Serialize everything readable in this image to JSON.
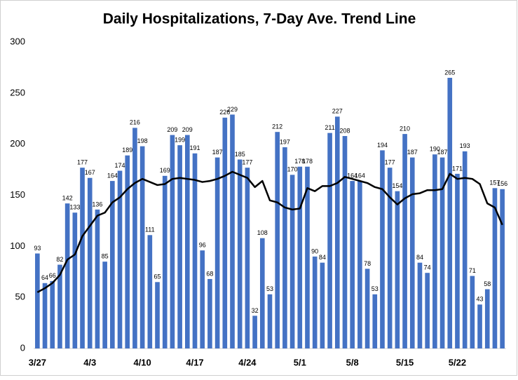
{
  "chart_data": {
    "type": "bar",
    "title": "Daily Hospitalizations, 7-Day Ave. Trend Line",
    "categories": [
      "3/27",
      null,
      null,
      null,
      null,
      null,
      null,
      "4/3",
      null,
      null,
      null,
      null,
      null,
      null,
      "4/10",
      null,
      null,
      null,
      null,
      null,
      null,
      "4/17",
      null,
      null,
      null,
      null,
      null,
      null,
      "4/24",
      null,
      null,
      null,
      null,
      null,
      null,
      "5/1",
      null,
      null,
      null,
      null,
      null,
      null,
      "5/8",
      null,
      null,
      null,
      null,
      null,
      null,
      "5/15",
      null,
      null,
      null,
      null,
      null,
      null,
      "5/22",
      null,
      null,
      null,
      null,
      null,
      null
    ],
    "series": [
      {
        "type": "bar",
        "color": "#4472c4",
        "values": [
          93,
          64,
          66,
          82,
          142,
          133,
          177,
          167,
          136,
          85,
          164,
          174,
          189,
          216,
          198,
          111,
          65,
          169,
          209,
          199,
          209,
          191,
          96,
          68,
          187,
          226,
          229,
          185,
          177,
          32,
          108,
          53,
          212,
          197,
          170,
          178,
          178,
          90,
          84,
          211,
          227,
          208,
          164,
          164,
          78,
          53,
          194,
          177,
          154,
          210,
          187,
          84,
          74,
          190,
          187,
          265,
          171,
          193,
          71,
          43,
          58,
          157,
          156
        ]
      },
      {
        "type": "line",
        "color": "#000000",
        "values": [
          55,
          59,
          64,
          72,
          87,
          92,
          110,
          120,
          130,
          133,
          143,
          148,
          156,
          162,
          166,
          163,
          160,
          161,
          166,
          167,
          166,
          165,
          163,
          164,
          166,
          169,
          173,
          170,
          167,
          158,
          164,
          145,
          143,
          138,
          136,
          137,
          157,
          154,
          159,
          159,
          162,
          168,
          166,
          164,
          162,
          158,
          156,
          148,
          141,
          147,
          151,
          152,
          155,
          155,
          156,
          171,
          166,
          167,
          166,
          161,
          142,
          138,
          121
        ]
      }
    ],
    "ylim": [
      0,
      300
    ],
    "yticks": [
      0,
      50,
      100,
      150,
      200,
      250,
      300
    ],
    "grid": false
  }
}
